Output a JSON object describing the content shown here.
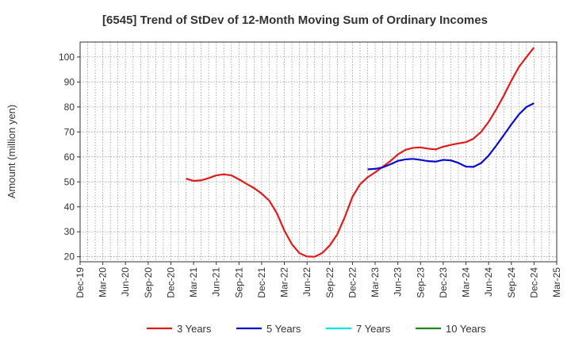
{
  "chart_data": {
    "type": "line",
    "title": "[6545]  Trend of StDev of 12-Month Moving Sum of Ordinary Incomes",
    "ylabel": "Amount (million yen)",
    "xlabel": "",
    "ylim": [
      18,
      106
    ],
    "yticks": [
      20,
      30,
      40,
      50,
      60,
      70,
      80,
      90,
      100
    ],
    "xticks": [
      "Dec-19",
      "Mar-20",
      "Jun-20",
      "Sep-20",
      "Dec-20",
      "Mar-21",
      "Jun-21",
      "Sep-21",
      "Dec-21",
      "Mar-22",
      "Jun-22",
      "Sep-22",
      "Dec-22",
      "Mar-23",
      "Jun-23",
      "Sep-23",
      "Dec-23",
      "Mar-24",
      "Jun-24",
      "Sep-24",
      "Dec-24",
      "Mar-25"
    ],
    "x_start": "Dec-19",
    "grid": true,
    "legend_position": "bottom",
    "series": [
      {
        "name": "3 Years",
        "color": "#e31a1c",
        "start_index": 14,
        "values": [
          51.3,
          50.4,
          50.6,
          51.5,
          52.6,
          53.0,
          52.6,
          51.0,
          49.2,
          47.5,
          45.3,
          42.5,
          37.5,
          30.5,
          25.0,
          21.4,
          20.1,
          20.0,
          21.5,
          24.5,
          29.0,
          36.0,
          44.0,
          49.0,
          51.8,
          53.8,
          56.0,
          58.3,
          61.0,
          62.8,
          63.6,
          63.8,
          63.3,
          63.0,
          64.1,
          64.8,
          65.4,
          65.9,
          67.3,
          70.0,
          74.0,
          79.0,
          84.5,
          90.5,
          96.0,
          100.0,
          103.8
        ]
      },
      {
        "name": "5 Years",
        "color": "#0a0ad0",
        "start_index": 38,
        "values": [
          55.0,
          55.2,
          55.8,
          57.0,
          58.4,
          59.0,
          59.2,
          58.8,
          58.3,
          58.1,
          58.8,
          58.6,
          57.6,
          56.1,
          56.0,
          57.5,
          60.5,
          64.5,
          68.7,
          73.0,
          77.0,
          80.0,
          81.5
        ]
      },
      {
        "name": "7 Years",
        "color": "#00e5ee",
        "start_index": 0,
        "values": []
      },
      {
        "name": "10 Years",
        "color": "#1a8a1a",
        "start_index": 0,
        "values": []
      }
    ]
  }
}
